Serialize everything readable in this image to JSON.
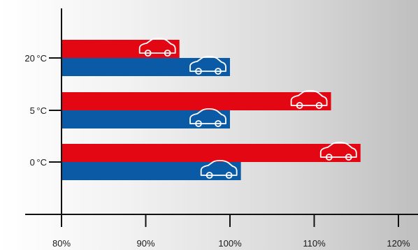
{
  "chart_data": {
    "type": "bar",
    "orientation": "horizontal",
    "categories": [
      "20 °C",
      "5 °C",
      "0 °C"
    ],
    "series": [
      {
        "color": "#e30613",
        "values": [
          94,
          112,
          115.5
        ]
      },
      {
        "color": "#0a5aa6",
        "values": [
          100,
          100,
          101.3
        ]
      }
    ],
    "x_ticks": [
      "80%",
      "90%",
      "100%",
      "110%",
      "120%"
    ],
    "x_tick_values": [
      80,
      90,
      100,
      110,
      120
    ],
    "xlim": [
      80,
      120
    ],
    "grid": false,
    "legend": "none",
    "bar_icon": "car-outline-icon"
  }
}
